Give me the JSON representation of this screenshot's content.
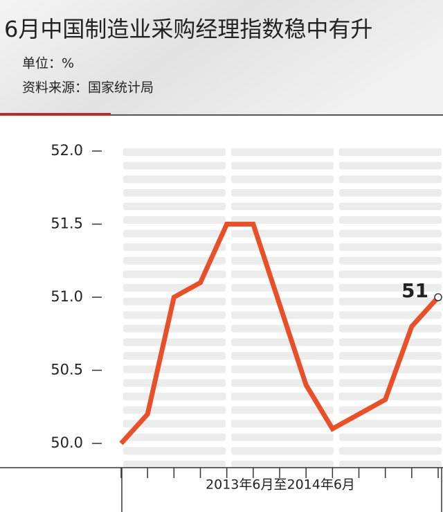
{
  "chart_data": {
    "type": "line",
    "title": "6月中国制造业采购经理指数稳中有升",
    "unit": "单位：%",
    "source": "资料来源：国家统计局",
    "x_label": "2013年6月至2014年6月",
    "categories": [
      null,
      null,
      null,
      null,
      null,
      null,
      null,
      null,
      null,
      null,
      null,
      null,
      null
    ],
    "series": [
      {
        "name": null,
        "color": "#e8502a",
        "values": [
          50.0,
          50.2,
          51.0,
          51.1,
          51.5,
          51.5,
          50.95,
          50.4,
          50.1,
          50.2,
          50.3,
          50.8,
          51
        ],
        "value_labels": [
          null,
          null,
          null,
          null,
          null,
          null,
          null,
          null,
          null,
          null,
          null,
          null,
          "51"
        ]
      }
    ],
    "ylim": [
      50.0,
      52.0
    ],
    "yticks": [
      {
        "value": 50,
        "label": "50.0"
      },
      {
        "value": 50.5,
        "label": "50.5"
      },
      {
        "value": 51,
        "label": "51.0"
      },
      {
        "value": 51.5,
        "label": "51.5"
      },
      {
        "value": 52,
        "label": "52.0"
      }
    ]
  }
}
